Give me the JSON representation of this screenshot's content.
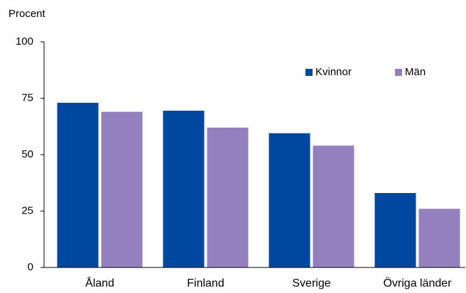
{
  "chart_data": {
    "type": "bar",
    "y_label": "Procent",
    "categories": [
      "Åland",
      "Finland",
      "Sverige",
      "Övriga länder"
    ],
    "series": [
      {
        "name": "Kvinnor",
        "color": "#0047a0",
        "values": [
          73,
          69.5,
          59.5,
          33
        ]
      },
      {
        "name": "Män",
        "color": "#9480be",
        "values": [
          69,
          62,
          54,
          26
        ]
      }
    ],
    "ylim": [
      0,
      100
    ],
    "yticks": [
      0,
      25,
      50,
      75,
      100
    ],
    "legend": "upper right"
  }
}
